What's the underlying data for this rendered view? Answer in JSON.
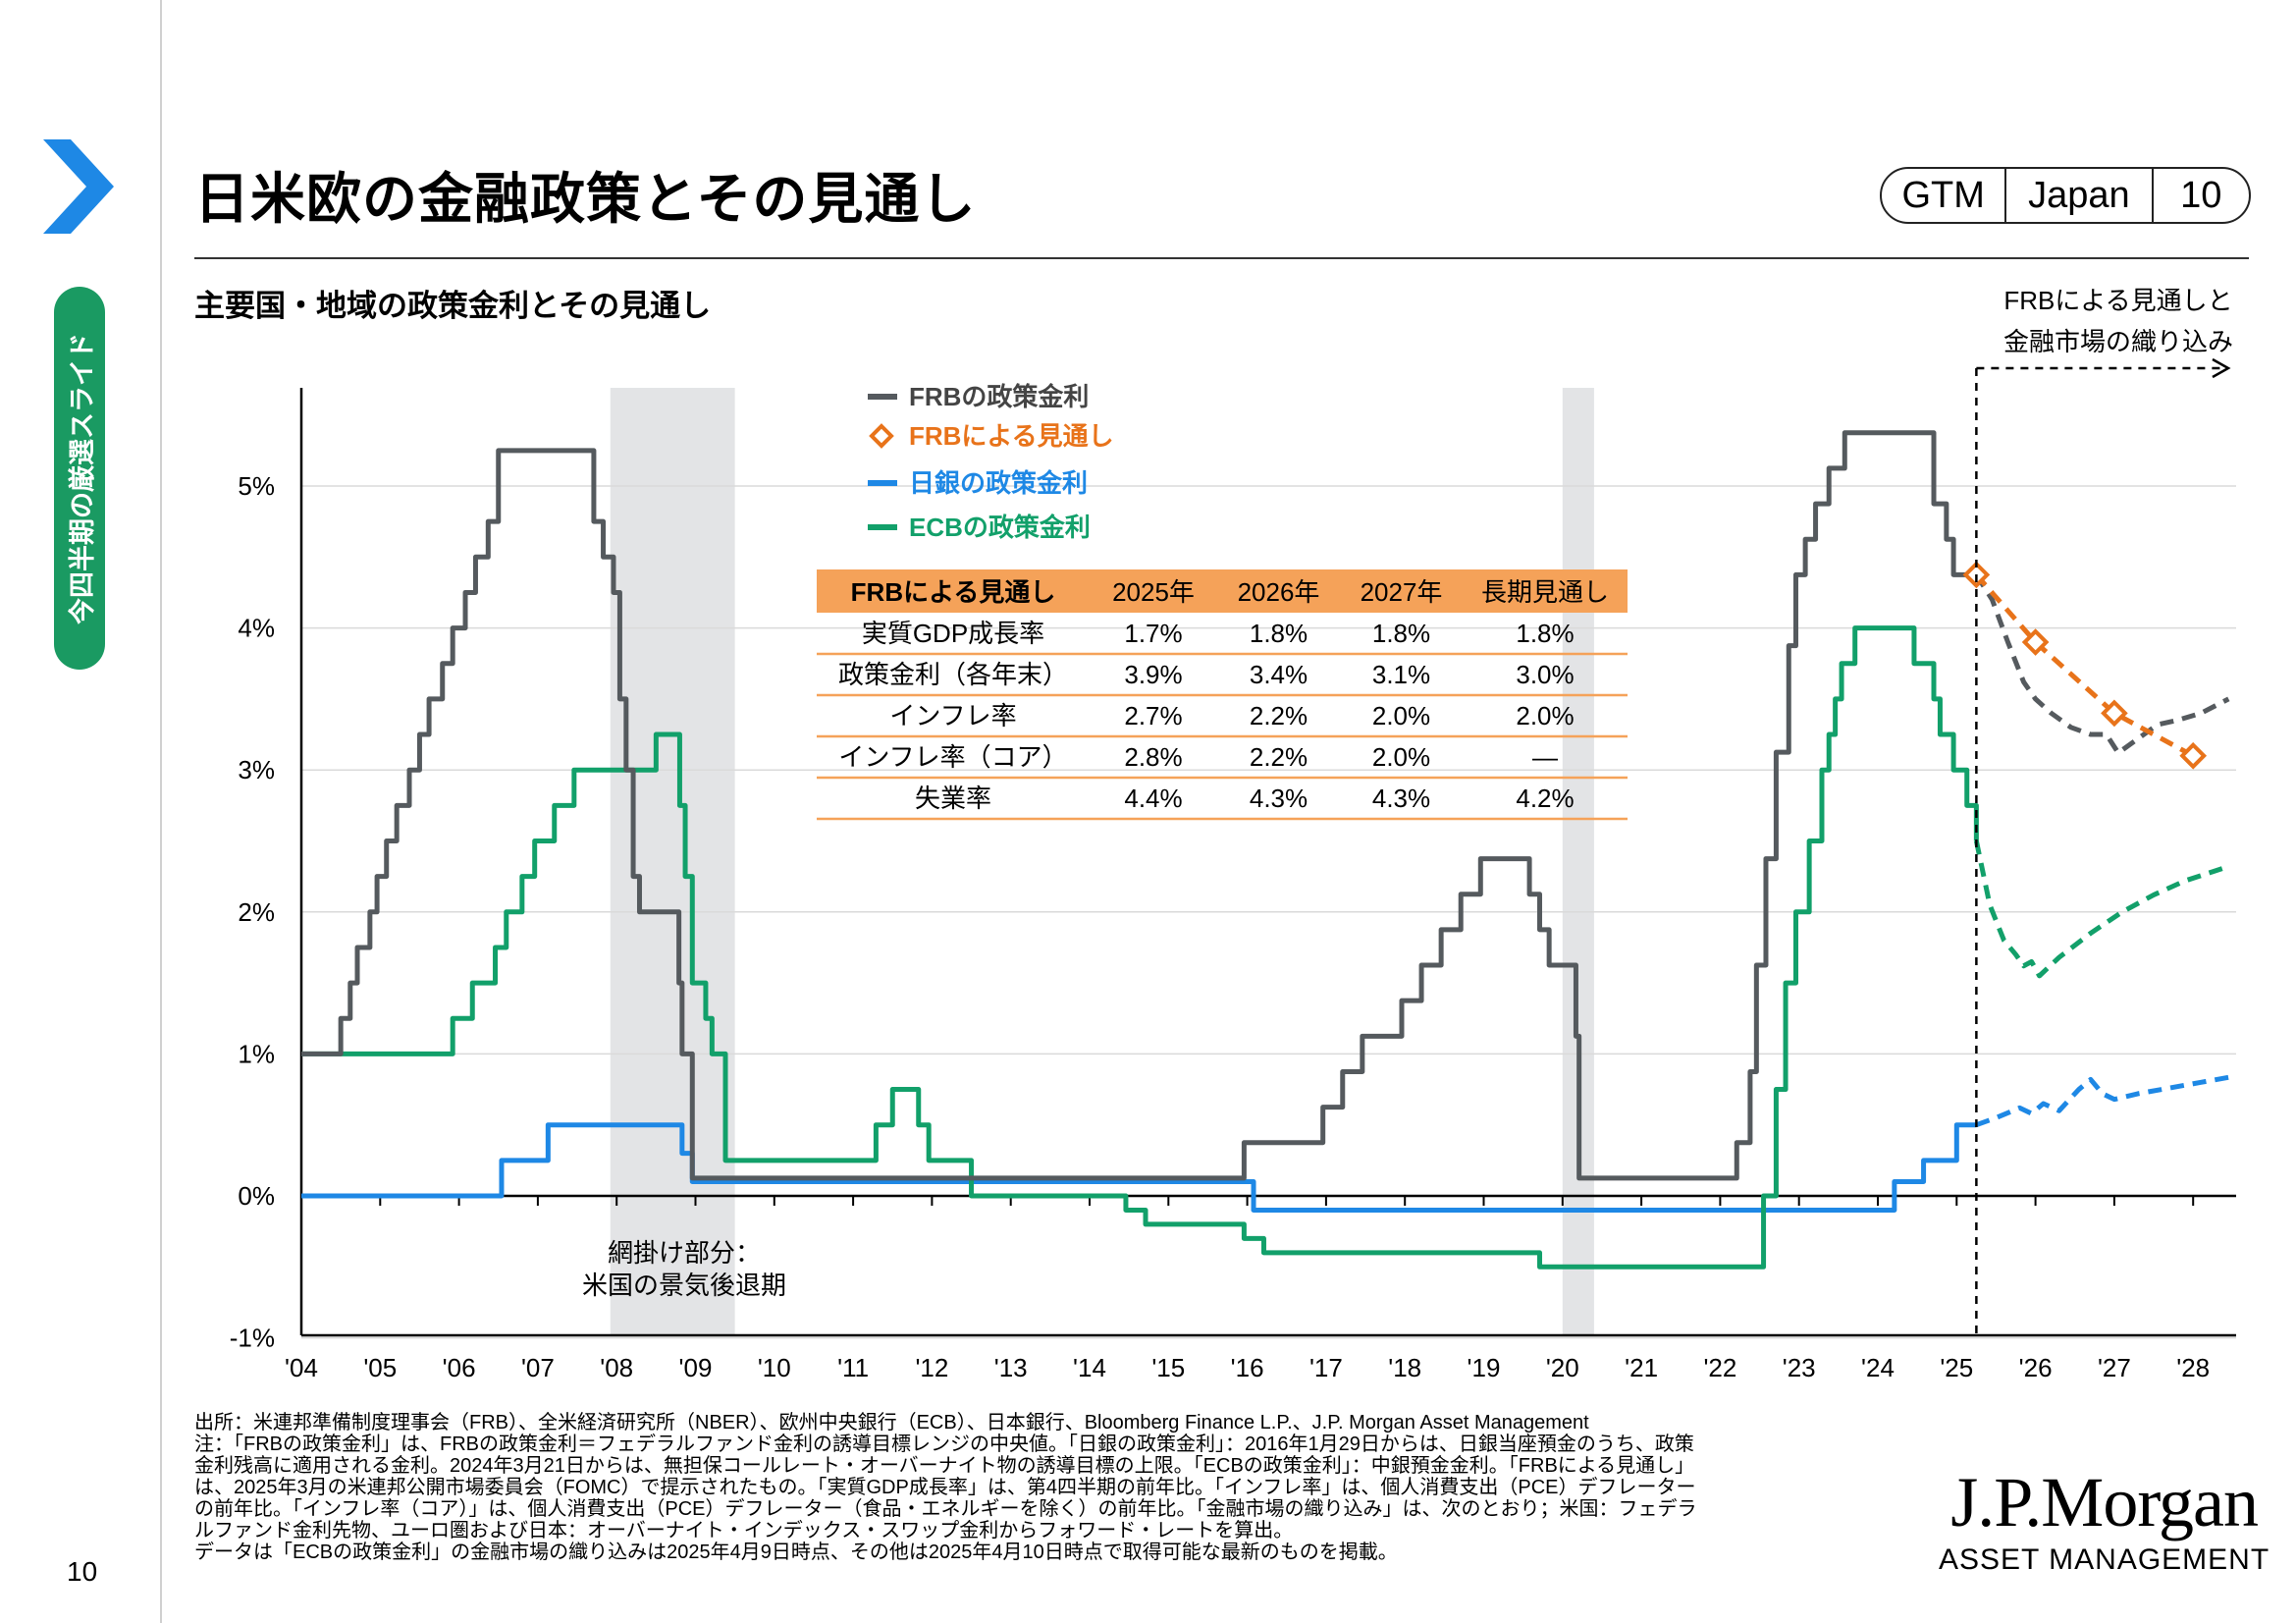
{
  "header": {
    "title": "日米欧の金融政策とその見通し",
    "badge": [
      "GTM",
      "Japan",
      "10"
    ]
  },
  "sidebar": {
    "section_label": "今四半期の厳選スライド",
    "page_number": "10",
    "accent_color": "#1a9a62",
    "chevron_color": "#1e88e5"
  },
  "subtitle": "主要国・地域の政策金利とその見通し",
  "colors": {
    "frb": "#555a5e",
    "frb_projection": "#e8731a",
    "boj": "#1e88e5",
    "ecb": "#12a06a",
    "recession": "#e3e4e6"
  },
  "chart_data": {
    "type": "line",
    "x_unit": "year",
    "xlim": [
      2004.0,
      2028.5
    ],
    "ylim": [
      -1,
      5.9
    ],
    "y_ticks": [
      "-1%",
      "0%",
      "1%",
      "2%",
      "3%",
      "4%",
      "5%"
    ],
    "x_ticks": [
      "'04",
      "'05",
      "'06",
      "'07",
      "'08",
      "'09",
      "'10",
      "'11",
      "'12",
      "'13",
      "'14",
      "'15",
      "'16",
      "'17",
      "'18",
      "'19",
      "'20",
      "'21",
      "'22",
      "'23",
      "'24",
      "'25",
      "'26",
      "'27",
      "'28"
    ],
    "forecast_start": 2025.25,
    "forecast_label": [
      "FRBによる見通しと",
      "金融市場の織り込み"
    ],
    "recessions": [
      [
        2007.92,
        2009.5
      ],
      [
        2020.0,
        2020.4
      ]
    ],
    "recession_note": [
      "網掛け部分：",
      "米国の景気後退期"
    ],
    "legend": [
      {
        "label": "FRBの政策金利",
        "color_key": "frb",
        "style": "line"
      },
      {
        "label": "FRBによる見通し",
        "color_key": "frb_projection",
        "style": "diamond"
      },
      {
        "label": "日銀の政策金利",
        "color_key": "boj",
        "style": "line"
      },
      {
        "label": "ECBの政策金利",
        "color_key": "ecb",
        "style": "line"
      }
    ],
    "series": [
      {
        "name": "FRBの政策金利",
        "color_key": "frb",
        "step": true,
        "points": [
          [
            2004.0,
            1.0
          ],
          [
            2004.5,
            1.25
          ],
          [
            2004.62,
            1.5
          ],
          [
            2004.71,
            1.75
          ],
          [
            2004.87,
            2.0
          ],
          [
            2004.96,
            2.25
          ],
          [
            2005.08,
            2.5
          ],
          [
            2005.21,
            2.75
          ],
          [
            2005.37,
            3.0
          ],
          [
            2005.5,
            3.25
          ],
          [
            2005.62,
            3.5
          ],
          [
            2005.79,
            3.75
          ],
          [
            2005.92,
            4.0
          ],
          [
            2006.08,
            4.25
          ],
          [
            2006.21,
            4.5
          ],
          [
            2006.37,
            4.75
          ],
          [
            2006.5,
            5.25
          ],
          [
            2007.71,
            4.75
          ],
          [
            2007.83,
            4.5
          ],
          [
            2007.96,
            4.25
          ],
          [
            2008.04,
            3.5
          ],
          [
            2008.12,
            3.0
          ],
          [
            2008.21,
            2.25
          ],
          [
            2008.29,
            2.0
          ],
          [
            2008.79,
            1.5
          ],
          [
            2008.83,
            1.0
          ],
          [
            2008.96,
            0.125
          ],
          [
            2015.96,
            0.375
          ],
          [
            2016.96,
            0.625
          ],
          [
            2017.21,
            0.875
          ],
          [
            2017.46,
            1.125
          ],
          [
            2017.96,
            1.375
          ],
          [
            2018.21,
            1.625
          ],
          [
            2018.46,
            1.875
          ],
          [
            2018.71,
            2.125
          ],
          [
            2018.96,
            2.375
          ],
          [
            2019.58,
            2.125
          ],
          [
            2019.71,
            1.875
          ],
          [
            2019.83,
            1.625
          ],
          [
            2020.17,
            1.125
          ],
          [
            2020.21,
            0.125
          ],
          [
            2022.21,
            0.375
          ],
          [
            2022.38,
            0.875
          ],
          [
            2022.46,
            1.625
          ],
          [
            2022.58,
            2.375
          ],
          [
            2022.71,
            3.125
          ],
          [
            2022.87,
            3.875
          ],
          [
            2022.96,
            4.375
          ],
          [
            2023.08,
            4.625
          ],
          [
            2023.21,
            4.875
          ],
          [
            2023.38,
            5.125
          ],
          [
            2023.58,
            5.375
          ],
          [
            2024.71,
            4.875
          ],
          [
            2024.87,
            4.625
          ],
          [
            2024.96,
            4.375
          ],
          [
            2025.25,
            4.375
          ]
        ]
      },
      {
        "name": "FRB market-implied",
        "color_key": "frb",
        "dashed": true,
        "points": [
          [
            2025.25,
            4.375
          ],
          [
            2025.45,
            4.2
          ],
          [
            2025.65,
            3.9
          ],
          [
            2025.85,
            3.62
          ],
          [
            2026.0,
            3.5
          ],
          [
            2026.2,
            3.4
          ],
          [
            2026.45,
            3.3
          ],
          [
            2026.7,
            3.25
          ],
          [
            2026.9,
            3.25
          ],
          [
            2027.05,
            3.12
          ],
          [
            2027.3,
            3.22
          ],
          [
            2027.55,
            3.32
          ],
          [
            2027.8,
            3.35
          ],
          [
            2028.1,
            3.4
          ],
          [
            2028.45,
            3.5
          ]
        ]
      },
      {
        "name": "ECBの政策金利",
        "color_key": "ecb",
        "step": true,
        "points": [
          [
            2004.0,
            1.0
          ],
          [
            2005.92,
            1.25
          ],
          [
            2006.17,
            1.5
          ],
          [
            2006.46,
            1.75
          ],
          [
            2006.6,
            2.0
          ],
          [
            2006.8,
            2.25
          ],
          [
            2006.96,
            2.5
          ],
          [
            2007.21,
            2.75
          ],
          [
            2007.46,
            3.0
          ],
          [
            2008.5,
            3.25
          ],
          [
            2008.8,
            2.75
          ],
          [
            2008.87,
            2.25
          ],
          [
            2008.96,
            1.5
          ],
          [
            2009.13,
            1.25
          ],
          [
            2009.21,
            1.0
          ],
          [
            2009.38,
            0.25
          ],
          [
            2011.29,
            0.5
          ],
          [
            2011.5,
            0.75
          ],
          [
            2011.83,
            0.5
          ],
          [
            2011.96,
            0.25
          ],
          [
            2012.5,
            0.0
          ],
          [
            2014.46,
            -0.1
          ],
          [
            2014.71,
            -0.2
          ],
          [
            2015.96,
            -0.3
          ],
          [
            2016.21,
            -0.4
          ],
          [
            2019.71,
            -0.5
          ],
          [
            2022.55,
            0.0
          ],
          [
            2022.71,
            0.75
          ],
          [
            2022.83,
            1.5
          ],
          [
            2022.96,
            2.0
          ],
          [
            2023.13,
            2.5
          ],
          [
            2023.29,
            3.0
          ],
          [
            2023.38,
            3.25
          ],
          [
            2023.46,
            3.5
          ],
          [
            2023.54,
            3.75
          ],
          [
            2023.71,
            4.0
          ],
          [
            2024.46,
            3.75
          ],
          [
            2024.71,
            3.5
          ],
          [
            2024.79,
            3.25
          ],
          [
            2024.96,
            3.0
          ],
          [
            2025.13,
            2.75
          ],
          [
            2025.25,
            2.5
          ]
        ]
      },
      {
        "name": "ECB market-implied",
        "color_key": "ecb",
        "dashed": true,
        "points": [
          [
            2025.25,
            2.5
          ],
          [
            2025.42,
            2.05
          ],
          [
            2025.6,
            1.8
          ],
          [
            2025.75,
            1.7
          ],
          [
            2025.85,
            1.62
          ],
          [
            2025.95,
            1.65
          ],
          [
            2026.05,
            1.55
          ],
          [
            2026.3,
            1.68
          ],
          [
            2026.7,
            1.85
          ],
          [
            2027.1,
            2.0
          ],
          [
            2027.5,
            2.12
          ],
          [
            2027.9,
            2.22
          ],
          [
            2028.45,
            2.32
          ]
        ]
      },
      {
        "name": "日銀の政策金利",
        "color_key": "boj",
        "step": true,
        "points": [
          [
            2004.0,
            0.0
          ],
          [
            2006.54,
            0.25
          ],
          [
            2007.13,
            0.5
          ],
          [
            2008.83,
            0.3
          ],
          [
            2008.96,
            0.1
          ],
          [
            2016.08,
            -0.1
          ],
          [
            2024.21,
            0.1
          ],
          [
            2024.58,
            0.25
          ],
          [
            2025.0,
            0.5
          ],
          [
            2025.25,
            0.5
          ]
        ]
      },
      {
        "name": "BOJ market-implied",
        "color_key": "boj",
        "dashed": true,
        "points": [
          [
            2025.25,
            0.5
          ],
          [
            2025.5,
            0.55
          ],
          [
            2025.8,
            0.62
          ],
          [
            2025.95,
            0.58
          ],
          [
            2026.1,
            0.65
          ],
          [
            2026.3,
            0.6
          ],
          [
            2026.55,
            0.75
          ],
          [
            2026.7,
            0.82
          ],
          [
            2026.85,
            0.72
          ],
          [
            2027.0,
            0.68
          ],
          [
            2027.3,
            0.72
          ],
          [
            2027.7,
            0.76
          ],
          [
            2028.1,
            0.8
          ],
          [
            2028.5,
            0.84
          ]
        ]
      },
      {
        "name": "FRBによる見通し",
        "color_key": "frb_projection",
        "dashed": true,
        "markers": "diamond",
        "points": [
          [
            2025.25,
            4.375
          ],
          [
            2026.0,
            3.9
          ],
          [
            2027.0,
            3.4
          ],
          [
            2028.0,
            3.1
          ]
        ]
      }
    ],
    "projection_table": {
      "header_color": "#f5a259",
      "columns": [
        "FRBによる見通し",
        "2025年",
        "2026年",
        "2027年",
        "長期見通し"
      ],
      "rows": [
        [
          "実質GDP成長率",
          "1.7%",
          "1.8%",
          "1.8%",
          "1.8%"
        ],
        [
          "政策金利（各年末）",
          "3.9%",
          "3.4%",
          "3.1%",
          "3.0%"
        ],
        [
          "インフレ率",
          "2.7%",
          "2.2%",
          "2.0%",
          "2.0%"
        ],
        [
          "インフレ率（コア）",
          "2.8%",
          "2.2%",
          "2.0%",
          "—"
        ],
        [
          "失業率",
          "4.4%",
          "4.3%",
          "4.3%",
          "4.2%"
        ]
      ]
    }
  },
  "footnotes": [
    "出所：米連邦準備制度理事会（FRB）、全米経済研究所（NBER）、欧州中央銀行（ECB）、日本銀行、Bloomberg Finance L.P.、J.P. Morgan Asset Management",
    "注：「FRBの政策金利」は、FRBの政策金利＝フェデラルファンド金利の誘導目標レンジの中央値。「日銀の政策金利」：2016年1月29日からは、日銀当座預金のうち、政策",
    "金利残高に適用される金利。2024年3月21日からは、無担保コールレート・オーバーナイト物の誘導目標の上限。「ECBの政策金利」：中銀預金金利。「FRBによる見通し」",
    "は、2025年3月の米連邦公開市場委員会（FOMC）で提示されたもの。「実質GDP成長率」は、第4四半期の前年比。「インフレ率」は、個人消費支出（PCE）デフレーター",
    "の前年比。「インフレ率（コア）」は、個人消費支出（PCE）デフレーター（食品・エネルギーを除く）の前年比。「金融市場の織り込み」は、次のとおり；米国：フェデラ",
    "ルファンド金利先物、ユーロ圏および日本：オーバーナイト・インデックス・スワップ金利からフォワード・レートを算出。",
    "データは「ECBの政策金利」の金融市場の織り込みは2025年4月9日時点、その他は2025年4月10日時点で取得可能な最新のものを掲載。"
  ],
  "logo": {
    "main": "J.P.Morgan",
    "sub": "ASSET MANAGEMENT"
  }
}
